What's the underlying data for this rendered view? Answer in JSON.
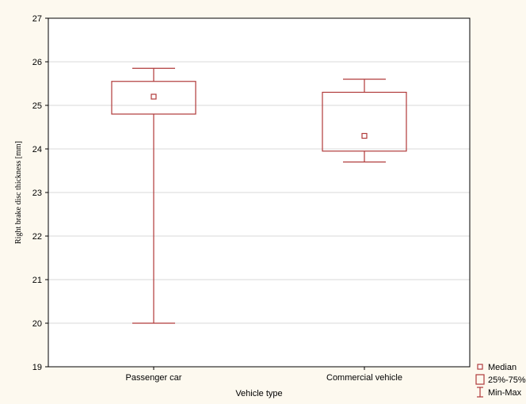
{
  "chart_data": {
    "type": "box",
    "xlabel": "Vehicle type",
    "ylabel": "Right brake disc thickness [mm]",
    "ylim": [
      19,
      27
    ],
    "yticks": [
      19,
      20,
      21,
      22,
      23,
      24,
      25,
      26,
      27
    ],
    "grid": true,
    "legend_position": "bottom-right",
    "categories": [
      "Passenger car",
      "Commercial vehicle"
    ],
    "boxes": [
      {
        "category": "Passenger car",
        "min": 20.0,
        "q1": 24.8,
        "median": 25.2,
        "q3": 25.55,
        "max": 25.85
      },
      {
        "category": "Commercial vehicle",
        "min": 23.7,
        "q1": 23.95,
        "median": 24.3,
        "q3": 25.3,
        "max": 25.6
      }
    ],
    "legend": [
      {
        "symbol": "median",
        "label": "Median"
      },
      {
        "symbol": "box",
        "label": "25%-75%"
      },
      {
        "symbol": "whisker",
        "label": "Min-Max"
      }
    ],
    "colors": {
      "box": "#b03a3a",
      "plot_bg": "#ffffff",
      "page_bg": "#fdf9ef",
      "grid": "#d9d9d9",
      "axis": "#000000"
    }
  }
}
